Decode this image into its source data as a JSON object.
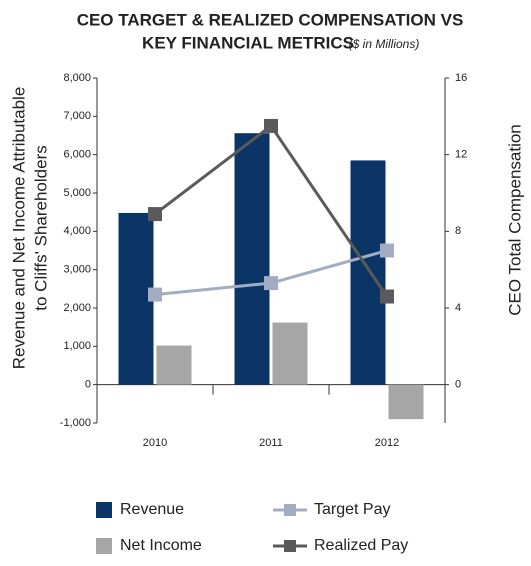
{
  "chart_data": {
    "type": "bar_line",
    "title": [
      "CEO TARGET & REALIZED COMPENSATION VS",
      "KEY FINANCIAL METRICS"
    ],
    "subtitle": "($ in Millions)",
    "y_label": [
      "Revenue and Net Income Attributable",
      "to Cliffs' Shareholders"
    ],
    "y2_label": "CEO Total Compensation",
    "categories": [
      "2010",
      "2011",
      "2012"
    ],
    "series": [
      {
        "name": "Revenue",
        "type": "bar",
        "color": "#0b3566",
        "values": [
          4480,
          6560,
          5850
        ]
      },
      {
        "name": "Net Income",
        "type": "bar",
        "color": "#a6a6a6",
        "values": [
          1020,
          1620,
          -900
        ]
      },
      {
        "name": "Target Pay",
        "type": "line",
        "axis": "y2",
        "color": "#a3adc2",
        "values": [
          4.7,
          5.3,
          7.0
        ]
      },
      {
        "name": "Realized Pay",
        "type": "line",
        "axis": "y2",
        "color": "#5a5a5a",
        "values": [
          8.9,
          13.5,
          4.6
        ]
      }
    ],
    "ylim": [
      -1000,
      8000
    ],
    "yticks": [
      {
        "value": -1000,
        "label": "-1,000"
      },
      0,
      {
        "value": 1000,
        "label": "1,000"
      },
      {
        "value": 2000,
        "label": "2,000"
      },
      {
        "value": 3000,
        "label": "3,000"
      },
      {
        "value": 4000,
        "label": "4,000"
      },
      {
        "value": 5000,
        "label": "5,000"
      },
      {
        "value": 6000,
        "label": "6,000"
      },
      {
        "value": 7000,
        "label": "7,000"
      },
      {
        "value": 8000,
        "label": "8,000"
      }
    ],
    "y2lim": [
      -2,
      16
    ],
    "y2ticks": [
      0,
      4,
      8,
      12,
      16
    ]
  }
}
